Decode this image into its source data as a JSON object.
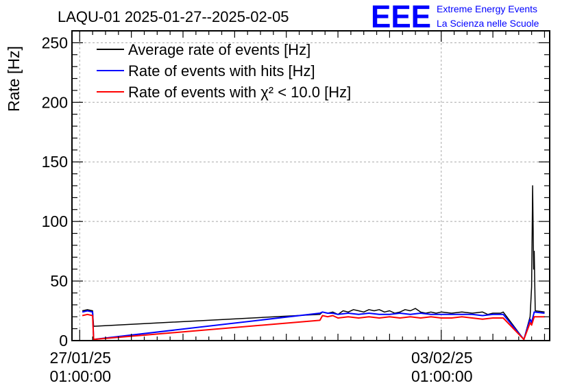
{
  "title": "LAQU-01 2025-01-27--2025-02-05",
  "logo": {
    "mark": "EEE",
    "line1": "Extreme Energy Events",
    "line2": "La Scienza nelle Scuole",
    "color": "#0000ff"
  },
  "chart_data": {
    "type": "line",
    "title": "LAQU-01 2025-01-27--2025-02-05",
    "ylabel": "Rate [Hz]",
    "xlabel": "",
    "ylim": [
      0,
      260
    ],
    "xlim": [
      -0.15,
      9.1
    ],
    "grid": true,
    "legend_position": "top-left",
    "y_ticks": [
      0,
      50,
      100,
      150,
      200,
      250
    ],
    "x_ticks": [
      {
        "pos": 0,
        "line1": "27/01/25",
        "line2": "01:00:00"
      },
      {
        "pos": 7,
        "line1": "03/02/25",
        "line2": "01:00:00"
      }
    ],
    "x_unit": "days since 27/01/25 01:00:00",
    "series": [
      {
        "name": "Average rate of events [Hz]",
        "color": "#000000",
        "points": [
          [
            0.05,
            25
          ],
          [
            0.15,
            26
          ],
          [
            0.25,
            25
          ],
          [
            0.27,
            12
          ],
          [
            4.65,
            22
          ],
          [
            4.7,
            24
          ],
          [
            4.8,
            23
          ],
          [
            4.9,
            24
          ],
          [
            5.0,
            22
          ],
          [
            5.1,
            25
          ],
          [
            5.2,
            24
          ],
          [
            5.3,
            26
          ],
          [
            5.4,
            25
          ],
          [
            5.5,
            24
          ],
          [
            5.6,
            26
          ],
          [
            5.7,
            25
          ],
          [
            5.8,
            26
          ],
          [
            5.9,
            24
          ],
          [
            6.0,
            25
          ],
          [
            6.1,
            23
          ],
          [
            6.2,
            24
          ],
          [
            6.3,
            26
          ],
          [
            6.4,
            25
          ],
          [
            6.5,
            27
          ],
          [
            6.6,
            24
          ],
          [
            6.7,
            23
          ],
          [
            6.8,
            24
          ],
          [
            6.9,
            23
          ],
          [
            7.0,
            24
          ],
          [
            7.2,
            23
          ],
          [
            7.4,
            24
          ],
          [
            7.6,
            23
          ],
          [
            7.8,
            24
          ],
          [
            7.9,
            22
          ],
          [
            8.0,
            23
          ],
          [
            8.15,
            23
          ],
          [
            8.2,
            24
          ],
          [
            8.6,
            1
          ],
          [
            8.72,
            20
          ],
          [
            8.75,
            45
          ],
          [
            8.77,
            130
          ],
          [
            8.79,
            60
          ],
          [
            8.8,
            75
          ],
          [
            8.82,
            25
          ],
          [
            9.0,
            24
          ]
        ]
      },
      {
        "name": "Rate of events with hits [Hz]",
        "color": "#0000ff",
        "points": [
          [
            0.05,
            24
          ],
          [
            0.15,
            25
          ],
          [
            0.25,
            24
          ],
          [
            0.27,
            1
          ],
          [
            4.65,
            23
          ],
          [
            4.7,
            24
          ],
          [
            4.8,
            23
          ],
          [
            4.9,
            23
          ],
          [
            5.0,
            22
          ],
          [
            5.2,
            23
          ],
          [
            5.4,
            22
          ],
          [
            5.6,
            23
          ],
          [
            5.8,
            22
          ],
          [
            6.0,
            22
          ],
          [
            6.2,
            23
          ],
          [
            6.4,
            22
          ],
          [
            6.6,
            23
          ],
          [
            6.8,
            22
          ],
          [
            7.0,
            22
          ],
          [
            7.2,
            22
          ],
          [
            7.4,
            22
          ],
          [
            7.6,
            22
          ],
          [
            7.8,
            21
          ],
          [
            8.0,
            22
          ],
          [
            8.15,
            22
          ],
          [
            8.2,
            22
          ],
          [
            8.6,
            1
          ],
          [
            8.72,
            18
          ],
          [
            8.75,
            15
          ],
          [
            8.8,
            24
          ],
          [
            9.0,
            23
          ]
        ]
      },
      {
        "name": "Rate of events with χ² < 10.0 [Hz]",
        "color": "#ff0000",
        "points": [
          [
            0.05,
            21
          ],
          [
            0.15,
            22
          ],
          [
            0.25,
            21
          ],
          [
            0.27,
            1
          ],
          [
            4.65,
            17
          ],
          [
            4.7,
            21
          ],
          [
            4.8,
            20
          ],
          [
            4.9,
            21
          ],
          [
            5.0,
            19
          ],
          [
            5.2,
            20
          ],
          [
            5.4,
            19
          ],
          [
            5.6,
            20
          ],
          [
            5.8,
            19
          ],
          [
            6.0,
            20
          ],
          [
            6.2,
            19
          ],
          [
            6.4,
            20
          ],
          [
            6.6,
            19
          ],
          [
            6.8,
            20
          ],
          [
            7.0,
            19
          ],
          [
            7.2,
            19
          ],
          [
            7.4,
            20
          ],
          [
            7.6,
            19
          ],
          [
            7.8,
            18
          ],
          [
            8.0,
            19
          ],
          [
            8.15,
            19
          ],
          [
            8.2,
            19
          ],
          [
            8.6,
            1
          ],
          [
            8.72,
            15
          ],
          [
            8.75,
            13
          ],
          [
            8.8,
            20
          ],
          [
            9.0,
            20
          ]
        ]
      }
    ]
  }
}
